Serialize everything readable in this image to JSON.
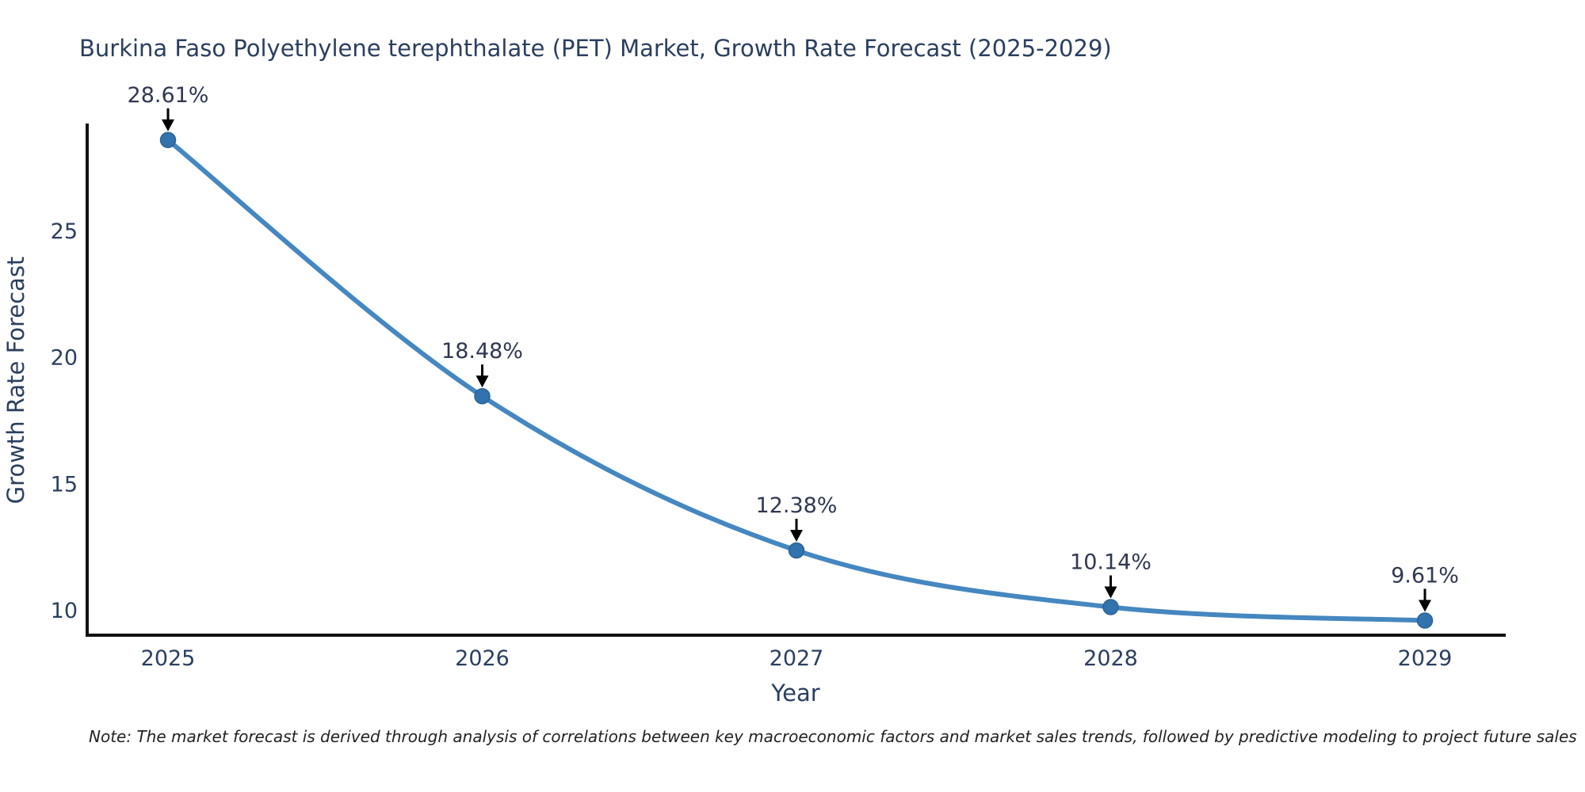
{
  "title": "Burkina Faso Polyethylene terephthalate (PET) Market, Growth Rate Forecast (2025-2029)",
  "note": "Note: The market forecast is derived through analysis of correlations between key macroeconomic factors and market sales trends, followed by predictive modeling to project future sales",
  "chart_data": {
    "type": "line",
    "title": "Burkina Faso Polyethylene terephthalate (PET) Market, Growth Rate Forecast (2025-2029)",
    "x": [
      2025,
      2026,
      2027,
      2028,
      2029
    ],
    "series": [
      {
        "name": "Growth Rate Forecast",
        "values": [
          28.61,
          18.48,
          12.38,
          10.14,
          9.61
        ]
      }
    ],
    "point_labels": [
      "28.61%",
      "18.48%",
      "12.38%",
      "10.14%",
      "9.61%"
    ],
    "xlabel": "Year",
    "ylabel": "Growth Rate Forecast",
    "yticks": [
      10,
      15,
      20,
      25
    ],
    "ylim": [
      9.03,
      29.26
    ],
    "line_shape": "spline",
    "grid": false,
    "legend_visible": false,
    "annotation_arrows": true,
    "colors": {
      "line": "#4587c0",
      "marker": "#3273ad",
      "marker_edge": "#2a6396",
      "axis": "#111111",
      "text": "#2a3f5f",
      "annotation_text": "#2e3850",
      "arrow": "#000000",
      "background": "#ffffff"
    }
  }
}
